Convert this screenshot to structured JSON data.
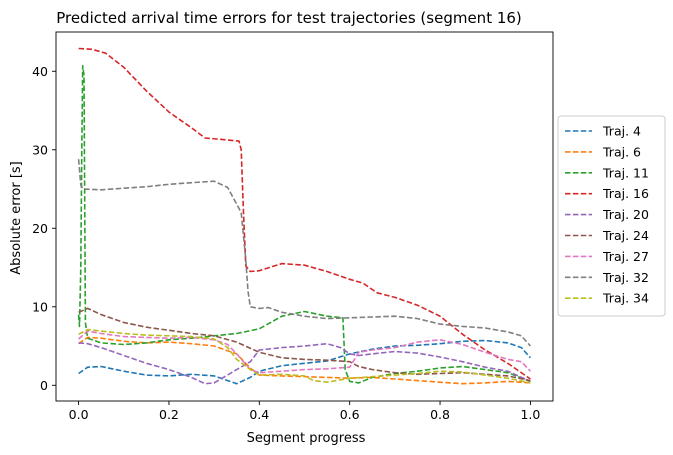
{
  "chart_data": {
    "type": "line",
    "title": "Predicted arrival time errors for test trajectories (segment 16)",
    "xlabel": "Segment progress",
    "ylabel": "Absolute error [s]",
    "xlim": [
      -0.05,
      1.05
    ],
    "ylim": [
      -2,
      45
    ],
    "xticks": [
      0.0,
      0.2,
      0.4,
      0.6,
      0.8,
      1.0
    ],
    "xtick_labels": [
      "0.0",
      "0.2",
      "0.4",
      "0.6",
      "0.8",
      "1.0"
    ],
    "yticks": [
      0,
      10,
      20,
      30,
      40
    ],
    "ytick_labels": [
      "0",
      "10",
      "20",
      "30",
      "40"
    ],
    "grid": false,
    "legend_position": "outside-right",
    "line_style": "dashed",
    "series": [
      {
        "name": "Traj. 4",
        "color": "#1f77b4",
        "points": [
          [
            0,
            1.5
          ],
          [
            0.02,
            2.3
          ],
          [
            0.05,
            2.4
          ],
          [
            0.1,
            1.8
          ],
          [
            0.15,
            1.3
          ],
          [
            0.2,
            1.2
          ],
          [
            0.25,
            1.4
          ],
          [
            0.3,
            1.2
          ],
          [
            0.33,
            0.6
          ],
          [
            0.35,
            0.2
          ],
          [
            0.38,
            1.0
          ],
          [
            0.4,
            1.8
          ],
          [
            0.45,
            2.5
          ],
          [
            0.5,
            2.8
          ],
          [
            0.55,
            3.1
          ],
          [
            0.6,
            4.0
          ],
          [
            0.65,
            4.6
          ],
          [
            0.7,
            5.0
          ],
          [
            0.75,
            5.1
          ],
          [
            0.8,
            5.3
          ],
          [
            0.85,
            5.6
          ],
          [
            0.9,
            5.7
          ],
          [
            0.95,
            5.4
          ],
          [
            0.98,
            4.8
          ],
          [
            1.0,
            3.5
          ]
        ]
      },
      {
        "name": "Traj. 6",
        "color": "#ff7f0e",
        "points": [
          [
            0,
            5.3
          ],
          [
            0.02,
            6.1
          ],
          [
            0.05,
            6.0
          ],
          [
            0.1,
            5.6
          ],
          [
            0.15,
            5.4
          ],
          [
            0.2,
            5.5
          ],
          [
            0.25,
            5.3
          ],
          [
            0.3,
            5.0
          ],
          [
            0.35,
            4.0
          ],
          [
            0.38,
            2.2
          ],
          [
            0.4,
            1.3
          ],
          [
            0.45,
            1.2
          ],
          [
            0.5,
            1.1
          ],
          [
            0.55,
            1.0
          ],
          [
            0.6,
            0.9
          ],
          [
            0.65,
            1.0
          ],
          [
            0.7,
            0.8
          ],
          [
            0.75,
            0.6
          ],
          [
            0.8,
            0.4
          ],
          [
            0.85,
            0.2
          ],
          [
            0.9,
            0.3
          ],
          [
            0.95,
            0.5
          ],
          [
            1.0,
            0.3
          ]
        ]
      },
      {
        "name": "Traj. 11",
        "color": "#2ca02c",
        "points": [
          [
            0,
            9.0
          ],
          [
            0.002,
            7.5
          ],
          [
            0.005,
            15
          ],
          [
            0.007,
            30
          ],
          [
            0.009,
            40.7
          ],
          [
            0.012,
            39.5
          ],
          [
            0.015,
            8.0
          ],
          [
            0.02,
            6.0
          ],
          [
            0.05,
            5.4
          ],
          [
            0.1,
            5.2
          ],
          [
            0.15,
            5.4
          ],
          [
            0.2,
            5.8
          ],
          [
            0.25,
            6.0
          ],
          [
            0.3,
            6.3
          ],
          [
            0.35,
            6.6
          ],
          [
            0.4,
            7.2
          ],
          [
            0.45,
            8.8
          ],
          [
            0.5,
            9.4
          ],
          [
            0.55,
            8.8
          ],
          [
            0.585,
            8.6
          ],
          [
            0.59,
            2.0
          ],
          [
            0.6,
            0.5
          ],
          [
            0.62,
            0.3
          ],
          [
            0.65,
            1.0
          ],
          [
            0.7,
            1.5
          ],
          [
            0.75,
            1.8
          ],
          [
            0.8,
            2.2
          ],
          [
            0.85,
            2.4
          ],
          [
            0.9,
            2.0
          ],
          [
            0.95,
            1.6
          ],
          [
            1.0,
            0.5
          ]
        ]
      },
      {
        "name": "Traj. 16",
        "color": "#d62728",
        "points": [
          [
            0,
            42.9
          ],
          [
            0.03,
            42.8
          ],
          [
            0.06,
            42.3
          ],
          [
            0.1,
            40.5
          ],
          [
            0.15,
            37.5
          ],
          [
            0.2,
            34.8
          ],
          [
            0.25,
            32.8
          ],
          [
            0.28,
            31.5
          ],
          [
            0.32,
            31.3
          ],
          [
            0.355,
            31.1
          ],
          [
            0.36,
            30.0
          ],
          [
            0.365,
            22
          ],
          [
            0.37,
            15.2
          ],
          [
            0.38,
            14.5
          ],
          [
            0.4,
            14.6
          ],
          [
            0.45,
            15.5
          ],
          [
            0.5,
            15.3
          ],
          [
            0.55,
            14.5
          ],
          [
            0.6,
            13.5
          ],
          [
            0.63,
            13.0
          ],
          [
            0.66,
            11.8
          ],
          [
            0.7,
            11.2
          ],
          [
            0.75,
            10.2
          ],
          [
            0.8,
            8.8
          ],
          [
            0.85,
            6.5
          ],
          [
            0.9,
            4.5
          ],
          [
            0.95,
            2.8
          ],
          [
            1.0,
            0.8
          ]
        ]
      },
      {
        "name": "Traj. 20",
        "color": "#9467bd",
        "points": [
          [
            0,
            5.4
          ],
          [
            0.02,
            5.3
          ],
          [
            0.05,
            4.8
          ],
          [
            0.1,
            3.8
          ],
          [
            0.15,
            2.8
          ],
          [
            0.2,
            2.0
          ],
          [
            0.25,
            1.0
          ],
          [
            0.28,
            0.2
          ],
          [
            0.3,
            0.3
          ],
          [
            0.35,
            2.0
          ],
          [
            0.38,
            3.0
          ],
          [
            0.4,
            4.5
          ],
          [
            0.45,
            4.8
          ],
          [
            0.5,
            5.0
          ],
          [
            0.55,
            5.3
          ],
          [
            0.58,
            4.8
          ],
          [
            0.6,
            4.0
          ],
          [
            0.62,
            3.8
          ],
          [
            0.65,
            4.0
          ],
          [
            0.7,
            4.3
          ],
          [
            0.75,
            4.1
          ],
          [
            0.8,
            3.6
          ],
          [
            0.85,
            3.0
          ],
          [
            0.9,
            2.3
          ],
          [
            0.95,
            1.8
          ],
          [
            1.0,
            0.5
          ]
        ]
      },
      {
        "name": "Traj. 24",
        "color": "#8c564b",
        "points": [
          [
            0,
            9.3
          ],
          [
            0.02,
            9.8
          ],
          [
            0.05,
            9.0
          ],
          [
            0.1,
            8.0
          ],
          [
            0.15,
            7.4
          ],
          [
            0.2,
            7.0
          ],
          [
            0.25,
            6.6
          ],
          [
            0.3,
            6.3
          ],
          [
            0.35,
            5.5
          ],
          [
            0.4,
            4.2
          ],
          [
            0.45,
            3.5
          ],
          [
            0.5,
            3.3
          ],
          [
            0.55,
            3.2
          ],
          [
            0.6,
            3.0
          ],
          [
            0.62,
            2.4
          ],
          [
            0.65,
            2.0
          ],
          [
            0.7,
            1.6
          ],
          [
            0.75,
            1.4
          ],
          [
            0.8,
            1.5
          ],
          [
            0.85,
            1.6
          ],
          [
            0.9,
            1.4
          ],
          [
            0.95,
            1.2
          ],
          [
            1.0,
            0.6
          ]
        ]
      },
      {
        "name": "Traj. 27",
        "color": "#e377c2",
        "points": [
          [
            0,
            5.9
          ],
          [
            0.02,
            6.9
          ],
          [
            0.05,
            6.6
          ],
          [
            0.1,
            6.2
          ],
          [
            0.15,
            6.1
          ],
          [
            0.2,
            6.0
          ],
          [
            0.25,
            6.1
          ],
          [
            0.3,
            5.8
          ],
          [
            0.33,
            5.2
          ],
          [
            0.35,
            4.0
          ],
          [
            0.38,
            2.0
          ],
          [
            0.4,
            1.6
          ],
          [
            0.45,
            1.8
          ],
          [
            0.5,
            2.0
          ],
          [
            0.55,
            2.1
          ],
          [
            0.6,
            2.3
          ],
          [
            0.62,
            4.2
          ],
          [
            0.65,
            4.5
          ],
          [
            0.7,
            4.8
          ],
          [
            0.75,
            5.5
          ],
          [
            0.8,
            5.8
          ],
          [
            0.85,
            5.2
          ],
          [
            0.9,
            4.2
          ],
          [
            0.95,
            3.3
          ],
          [
            0.98,
            3.0
          ],
          [
            1.0,
            1.8
          ]
        ]
      },
      {
        "name": "Traj. 32",
        "color": "#7f7f7f",
        "points": [
          [
            0,
            28.8
          ],
          [
            0.005,
            25.5
          ],
          [
            0.01,
            25.0
          ],
          [
            0.05,
            24.9
          ],
          [
            0.1,
            25.1
          ],
          [
            0.15,
            25.3
          ],
          [
            0.2,
            25.6
          ],
          [
            0.25,
            25.8
          ],
          [
            0.3,
            26.0
          ],
          [
            0.33,
            25.2
          ],
          [
            0.36,
            22.0
          ],
          [
            0.37,
            16.0
          ],
          [
            0.375,
            12.0
          ],
          [
            0.38,
            10.0
          ],
          [
            0.4,
            9.8
          ],
          [
            0.42,
            9.9
          ],
          [
            0.45,
            9.3
          ],
          [
            0.5,
            8.8
          ],
          [
            0.55,
            8.5
          ],
          [
            0.6,
            8.6
          ],
          [
            0.65,
            8.7
          ],
          [
            0.7,
            8.8
          ],
          [
            0.75,
            8.5
          ],
          [
            0.8,
            7.8
          ],
          [
            0.85,
            7.5
          ],
          [
            0.9,
            7.3
          ],
          [
            0.95,
            6.8
          ],
          [
            0.98,
            6.3
          ],
          [
            1.0,
            5.0
          ]
        ]
      },
      {
        "name": "Traj. 34",
        "color": "#bcbd22",
        "points": [
          [
            0,
            6.5
          ],
          [
            0.02,
            7.1
          ],
          [
            0.05,
            6.9
          ],
          [
            0.1,
            6.6
          ],
          [
            0.15,
            6.4
          ],
          [
            0.2,
            6.3
          ],
          [
            0.25,
            6.2
          ],
          [
            0.3,
            5.9
          ],
          [
            0.33,
            4.8
          ],
          [
            0.35,
            3.3
          ],
          [
            0.38,
            2.0
          ],
          [
            0.4,
            1.3
          ],
          [
            0.45,
            1.4
          ],
          [
            0.5,
            1.2
          ],
          [
            0.52,
            0.6
          ],
          [
            0.55,
            0.4
          ],
          [
            0.6,
            0.9
          ],
          [
            0.65,
            1.1
          ],
          [
            0.7,
            1.3
          ],
          [
            0.75,
            1.5
          ],
          [
            0.8,
            1.8
          ],
          [
            0.85,
            1.7
          ],
          [
            0.9,
            1.3
          ],
          [
            0.95,
            0.9
          ],
          [
            1.0,
            0.3
          ]
        ]
      }
    ]
  }
}
